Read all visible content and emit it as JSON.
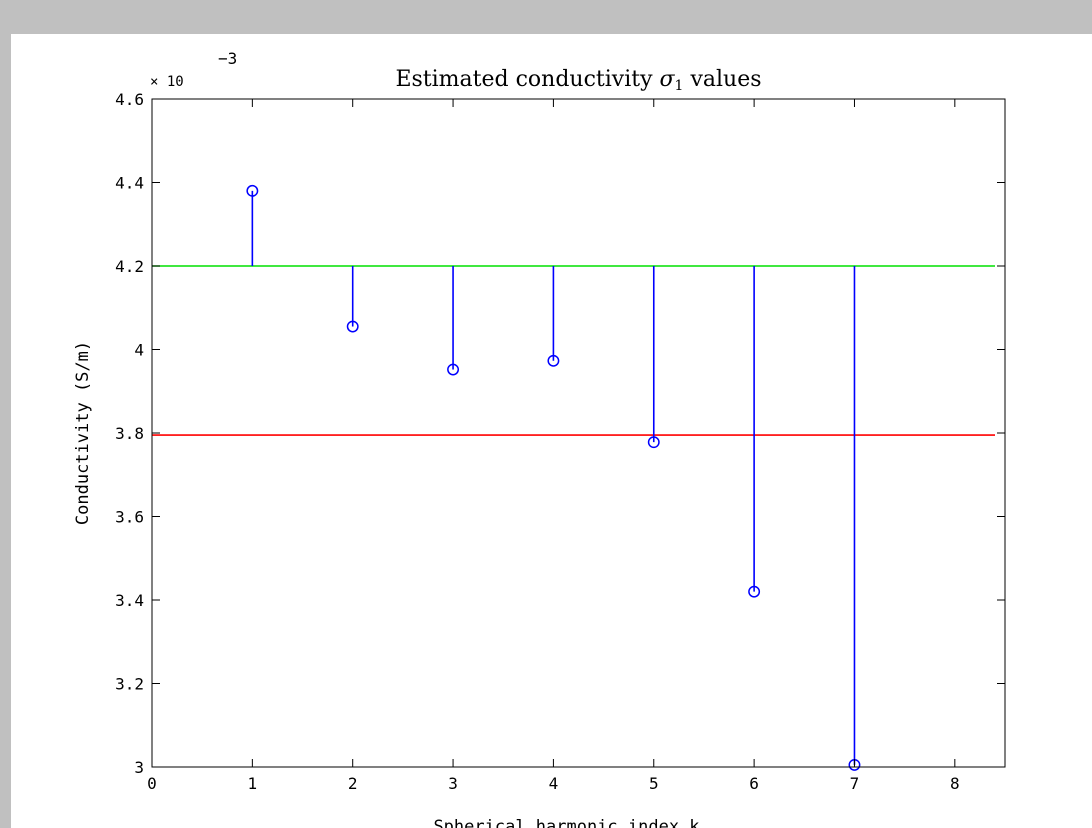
{
  "chart_data": {
    "type": "stem",
    "title": "Estimated conductivity σ₁ values",
    "title_prefix": "Estimated conductivity ",
    "title_symbol": "σ",
    "title_subscript": "1",
    "title_suffix": " values",
    "xlabel": "Spherical harmonic index k",
    "ylabel": "Conductivity (S/m)",
    "y_exponent_label": "× 10",
    "y_exponent": "−3",
    "xlim": [
      0,
      8.5
    ],
    "ylim": [
      3.0,
      4.6
    ],
    "x_ticks": [
      0,
      1,
      2,
      3,
      4,
      5,
      6,
      7,
      8
    ],
    "y_ticks": [
      3.0,
      3.2,
      3.4,
      3.6,
      3.8,
      4.0,
      4.2,
      4.4,
      4.6
    ],
    "y_tick_labels": [
      "3",
      "3.2",
      "3.4",
      "3.6",
      "3.8",
      "4",
      "4.2",
      "4.4",
      "4.6"
    ],
    "stem_baseline": 4.2,
    "series": [
      {
        "color": "#0000ff",
        "marker": "circle",
        "x": [
          1,
          2,
          3,
          4,
          5,
          6,
          7
        ],
        "values": [
          4.38,
          4.055,
          3.952,
          3.973,
          3.778,
          3.42,
          3.005
        ]
      }
    ],
    "reference_lines": [
      {
        "y": 4.2,
        "color": "#00e000"
      },
      {
        "y": 3.795,
        "color": "#ff0000"
      }
    ],
    "grid": false
  }
}
